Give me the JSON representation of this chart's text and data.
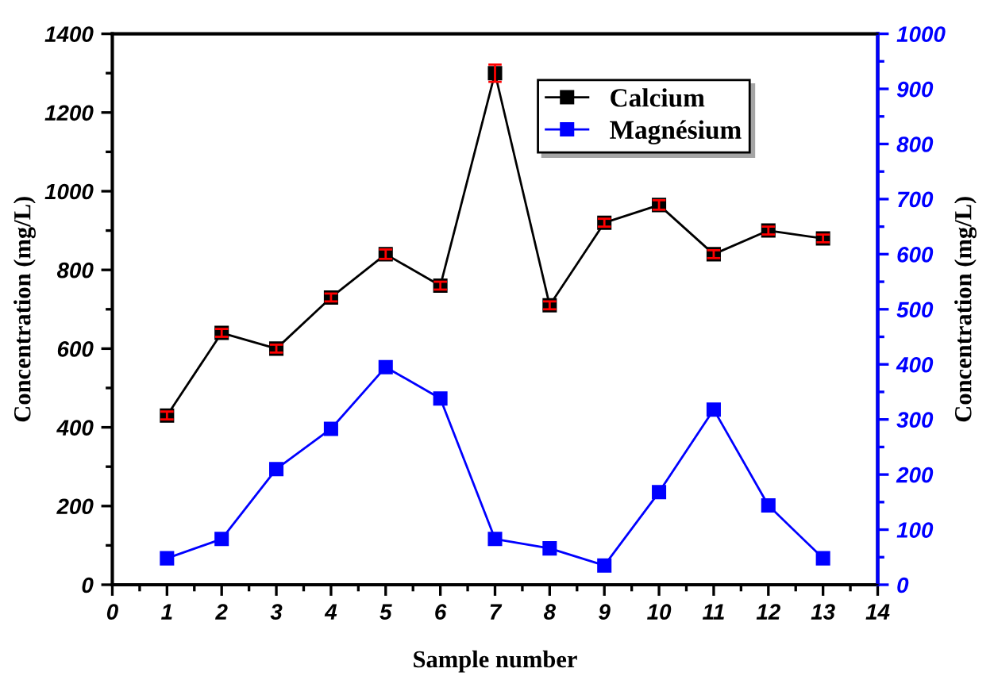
{
  "chart_data": {
    "type": "line",
    "xlabel": "Sample number",
    "ylabel": "Concentration (mg/L)",
    "y2label": "Concentration (mg/L)",
    "x": [
      1,
      2,
      3,
      4,
      5,
      6,
      7,
      8,
      9,
      10,
      11,
      12,
      13
    ],
    "series": [
      {
        "name": "Calcium",
        "color": "#000000",
        "values": [
          430,
          640,
          600,
          730,
          840,
          760,
          1300,
          710,
          920,
          965,
          840,
          900,
          880
        ],
        "errors": [
          10,
          10,
          10,
          10,
          12,
          10,
          22,
          10,
          10,
          12,
          10,
          10,
          10
        ]
      },
      {
        "name": "Magnésium",
        "color": "#0000ff",
        "axis": "y2",
        "values": [
          48,
          83,
          210,
          283,
          395,
          338,
          83,
          66,
          35,
          168,
          318,
          144,
          48
        ]
      }
    ],
    "xlim": [
      0,
      14
    ],
    "xticks": [
      0,
      1,
      2,
      3,
      4,
      5,
      6,
      7,
      8,
      9,
      10,
      11,
      12,
      13,
      14
    ],
    "ylim": [
      0,
      1400
    ],
    "yticks": [
      0,
      200,
      400,
      600,
      800,
      1000,
      1200,
      1400
    ],
    "y2lim": [
      0,
      1000
    ],
    "y2ticks": [
      0,
      100,
      200,
      300,
      400,
      500,
      600,
      700,
      800,
      900,
      1000
    ],
    "marker": "square",
    "line_style": "solid",
    "legend": "top right",
    "grid": false
  }
}
